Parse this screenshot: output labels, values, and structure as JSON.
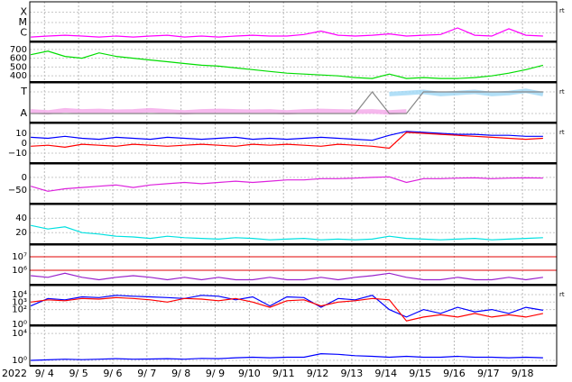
{
  "x_axis": {
    "label": "2022",
    "xlim": [
      3.57,
      19.0
    ],
    "xticks": [
      {
        "value": 4,
        "label": "9/ 4"
      },
      {
        "value": 5,
        "label": "9/ 5"
      },
      {
        "value": 6,
        "label": "9/ 6"
      },
      {
        "value": 7,
        "label": "9/ 7"
      },
      {
        "value": 8,
        "label": "9/ 8"
      },
      {
        "value": 9,
        "label": "9/ 9"
      },
      {
        "value": 10,
        "label": "9/10"
      },
      {
        "value": 11,
        "label": "9/11"
      },
      {
        "value": 12,
        "label": "9/12"
      },
      {
        "value": 13,
        "label": "9/13"
      },
      {
        "value": 14,
        "label": "9/14"
      },
      {
        "value": 15,
        "label": "9/15"
      },
      {
        "value": 16,
        "label": "9/16"
      },
      {
        "value": 17,
        "label": "9/17"
      },
      {
        "value": 18,
        "label": "9/18"
      }
    ]
  },
  "chart_data": [
    {
      "type": "line",
      "log": true,
      "corner_label": "rt",
      "ylim": [
        1.5e-07,
        0.001
      ],
      "yticks": [
        {
          "value": 0.0001,
          "label": "X"
        },
        {
          "value": 1e-05,
          "label": "M"
        },
        {
          "value": 1e-06,
          "label": "C"
        }
      ],
      "x": [
        3.6,
        4.1,
        4.6,
        5.1,
        5.6,
        6.1,
        6.6,
        7.1,
        7.6,
        8.1,
        8.6,
        9.1,
        9.6,
        10.1,
        10.6,
        11.1,
        11.6,
        12.1,
        12.6,
        13.1,
        13.6,
        14.1,
        14.6,
        15.1,
        15.6,
        16.1,
        16.6,
        17.1,
        17.6,
        18.1,
        18.6
      ],
      "series": [
        {
          "color": "#ff00ff",
          "values": [
            4e-07,
            5e-07,
            6e-07,
            5e-07,
            4e-07,
            5e-07,
            4e-07,
            5e-07,
            6e-07,
            4e-07,
            5e-07,
            4e-07,
            5e-07,
            6e-07,
            5e-07,
            5e-07,
            7e-07,
            1.5e-06,
            6e-07,
            5e-07,
            6e-07,
            8e-07,
            5e-07,
            6e-07,
            7e-07,
            3e-06,
            6e-07,
            5e-07,
            2.5e-06,
            6e-07,
            5e-07
          ]
        }
      ]
    },
    {
      "type": "line",
      "log": false,
      "ylim": [
        330,
        780
      ],
      "yticks": [
        400,
        500,
        600,
        700
      ],
      "x": [
        3.6,
        4.1,
        4.6,
        5.1,
        5.6,
        6.1,
        6.6,
        7.1,
        7.6,
        8.1,
        8.6,
        9.1,
        9.6,
        10.1,
        10.6,
        11.1,
        11.6,
        12.1,
        12.6,
        13.1,
        13.6,
        14.1,
        14.6,
        15.1,
        15.6,
        16.1,
        16.6,
        17.1,
        17.6,
        18.1,
        18.6
      ],
      "series": [
        {
          "color": "#00dd00",
          "values": [
            640,
            680,
            620,
            600,
            660,
            620,
            600,
            580,
            560,
            540,
            520,
            510,
            490,
            470,
            450,
            430,
            420,
            410,
            400,
            380,
            370,
            420,
            370,
            380,
            370,
            370,
            380,
            400,
            430,
            470,
            520
          ]
        }
      ]
    },
    {
      "type": "line",
      "log": false,
      "corner_label": "rt",
      "ylim": [
        -0.42,
        1.42
      ],
      "yticks": [
        {
          "value": 1,
          "label": "T"
        },
        {
          "value": 0,
          "label": "A"
        }
      ],
      "x": [
        3.6,
        4.1,
        4.6,
        5.1,
        5.6,
        6.1,
        6.6,
        7.1,
        7.6,
        8.1,
        8.6,
        9.1,
        9.6,
        10.1,
        10.6,
        11.1,
        11.6,
        12.1,
        12.6,
        13.1,
        13.6,
        14.1,
        14.6,
        15.1,
        15.6,
        16.1,
        16.6,
        17.1,
        17.6,
        18.1,
        18.6
      ],
      "series": [
        {
          "color": "#f4a6e8",
          "values": [
            0.1,
            0.05,
            0.15,
            0.1,
            0.12,
            0.08,
            0.1,
            0.15,
            0.1,
            0.05,
            0.1,
            0.12,
            0.1,
            0.08,
            0.1,
            0.05,
            0.1,
            0.12,
            0.1,
            0.08,
            0.1,
            0.05,
            0.1,
            null,
            null,
            null,
            null,
            null,
            null,
            null,
            null
          ]
        },
        {
          "color": "#9dd7f5",
          "values": [
            null,
            null,
            null,
            null,
            null,
            null,
            null,
            null,
            null,
            null,
            null,
            null,
            null,
            null,
            null,
            null,
            null,
            null,
            null,
            null,
            null,
            0.9,
            0.95,
            1.0,
            0.9,
            0.95,
            1.0,
            0.9,
            0.95,
            1.05,
            0.9
          ]
        },
        {
          "color": "#888888",
          "values": [
            0,
            0,
            0,
            0,
            0,
            0,
            0,
            0,
            0,
            0,
            0,
            0,
            0,
            0,
            0,
            0,
            0,
            0,
            0,
            0,
            1,
            0,
            0,
            1,
            1,
            1,
            1,
            1,
            1,
            1,
            1
          ]
        }
      ]
    },
    {
      "type": "line",
      "log": false,
      "corner_label": "rt",
      "ylim": [
        -20,
        20
      ],
      "yticks": [
        10,
        0,
        {
          "value": -10,
          "label": "−10"
        }
      ],
      "x": [
        3.6,
        4.1,
        4.6,
        5.1,
        5.6,
        6.1,
        6.6,
        7.1,
        7.6,
        8.1,
        8.6,
        9.1,
        9.6,
        10.1,
        10.6,
        11.1,
        11.6,
        12.1,
        12.6,
        13.1,
        13.6,
        14.1,
        14.6,
        15.1,
        15.6,
        16.1,
        16.6,
        17.1,
        17.6,
        18.1,
        18.6
      ],
      "series": [
        {
          "color": "#0000ff",
          "values": [
            6,
            5,
            7,
            5,
            4,
            6,
            5,
            4,
            6,
            5,
            4,
            5,
            6,
            4,
            5,
            4,
            5,
            6,
            5,
            4,
            3,
            8,
            12,
            11,
            10,
            9,
            9,
            8,
            8,
            7,
            7
          ]
        },
        {
          "color": "#ff0000",
          "values": [
            -3,
            -2,
            -4,
            -1,
            -2,
            -3,
            -1,
            -2,
            -3,
            -2,
            -1,
            -2,
            -3,
            -1,
            -2,
            -1,
            -2,
            -3,
            -1,
            -2,
            -3,
            -5,
            11,
            10,
            9,
            8,
            7,
            6,
            5,
            4,
            5
          ]
        }
      ]
    },
    {
      "type": "line",
      "log": false,
      "ylim": [
        -104,
        53
      ],
      "yticks": [
        0,
        {
          "value": -50,
          "label": "−50"
        }
      ],
      "x": [
        3.6,
        4.1,
        4.6,
        5.1,
        5.6,
        6.1,
        6.6,
        7.1,
        7.6,
        8.1,
        8.6,
        9.1,
        9.6,
        10.1,
        10.6,
        11.1,
        11.6,
        12.1,
        12.6,
        13.1,
        13.6,
        14.1,
        14.6,
        15.1,
        15.6,
        16.1,
        16.6,
        17.1,
        17.6,
        18.1,
        18.6
      ],
      "series": [
        {
          "color": "#dd22dd",
          "values": [
            -35,
            -55,
            -45,
            -40,
            -35,
            -30,
            -40,
            -30,
            -25,
            -20,
            -25,
            -20,
            -15,
            -20,
            -15,
            -10,
            -10,
            -5,
            -5,
            -3,
            0,
            2,
            -20,
            -5,
            -5,
            -3,
            -2,
            -5,
            -3,
            -2,
            -3
          ]
        }
      ]
    },
    {
      "type": "line",
      "log": false,
      "ylim": [
        4,
        59
      ],
      "yticks": [
        40,
        20
      ],
      "x": [
        3.6,
        4.1,
        4.6,
        5.1,
        5.6,
        6.1,
        6.6,
        7.1,
        7.6,
        8.1,
        8.6,
        9.1,
        9.6,
        10.1,
        10.6,
        11.1,
        11.6,
        12.1,
        12.6,
        13.1,
        13.6,
        14.1,
        14.6,
        15.1,
        15.6,
        16.1,
        16.6,
        17.1,
        17.6,
        18.1,
        18.6
      ],
      "series": [
        {
          "color": "#00e0e0",
          "values": [
            30,
            25,
            28,
            20,
            18,
            15,
            14,
            12,
            15,
            13,
            12,
            11,
            13,
            12,
            10,
            11,
            12,
            10,
            11,
            10,
            11,
            15,
            12,
            11,
            10,
            11,
            12,
            10,
            11,
            12,
            13
          ]
        }
      ]
    },
    {
      "type": "line",
      "log": true,
      "grid_color": "#e00000",
      "ylim": [
        86000,
        73000000
      ],
      "yticks": [
        {
          "value": 10000000,
          "label": "10⁷"
        },
        {
          "value": 1000000,
          "label": "10⁶"
        }
      ],
      "x": [
        3.6,
        4.1,
        4.6,
        5.1,
        5.6,
        6.1,
        6.6,
        7.1,
        7.6,
        8.1,
        8.6,
        9.1,
        9.6,
        10.1,
        10.6,
        11.1,
        11.6,
        12.1,
        12.6,
        13.1,
        13.6,
        14.1,
        14.6,
        15.1,
        15.6,
        16.1,
        16.6,
        17.1,
        17.6,
        18.1,
        18.6
      ],
      "series": [
        {
          "color": "#9922cc",
          "values": [
            400000,
            300000,
            600000,
            300000,
            200000,
            300000,
            400000,
            300000,
            200000,
            300000,
            200000,
            300000,
            200000,
            200000,
            300000,
            200000,
            200000,
            300000,
            200000,
            300000,
            400000,
            600000,
            300000,
            200000,
            200000,
            300000,
            200000,
            200000,
            300000,
            200000,
            300000
          ]
        }
      ]
    },
    {
      "type": "line",
      "log": true,
      "corner_label": "rt",
      "ylim": [
        0.8,
        160000
      ],
      "yticks": [
        {
          "value": 10000,
          "label": "10⁴"
        },
        {
          "value": 1000,
          "label": "10³"
        },
        {
          "value": 100,
          "label": "10²"
        },
        {
          "value": 1,
          "label": "10⁰"
        }
      ],
      "x": [
        3.6,
        4.1,
        4.6,
        5.1,
        5.6,
        6.1,
        6.6,
        7.1,
        7.6,
        8.1,
        8.6,
        9.1,
        9.6,
        10.1,
        10.6,
        11.1,
        11.6,
        12.1,
        12.6,
        13.1,
        13.6,
        14.1,
        14.6,
        15.1,
        15.6,
        16.1,
        16.6,
        17.1,
        17.6,
        18.1,
        18.6
      ],
      "series": [
        {
          "color": "#0000ff",
          "values": [
            300,
            3000,
            2000,
            5000,
            4000,
            8000,
            6000,
            5000,
            4000,
            3000,
            8000,
            6000,
            2000,
            5000,
            300,
            5000,
            4000,
            200,
            3000,
            2000,
            8000,
            100,
            10,
            100,
            30,
            200,
            50,
            100,
            30,
            200,
            80
          ]
        },
        {
          "color": "#ff0000",
          "values": [
            1000,
            2000,
            1500,
            3000,
            2500,
            4000,
            3000,
            2000,
            1000,
            3000,
            2500,
            1500,
            3000,
            1000,
            200,
            1500,
            2000,
            300,
            1000,
            1500,
            3000,
            2000,
            3,
            10,
            20,
            10,
            30,
            10,
            20,
            10,
            30
          ]
        }
      ]
    },
    {
      "type": "line",
      "log": true,
      "ylim": [
        0.16,
        120000
      ],
      "yticks": [
        {
          "value": 10000,
          "label": "10⁴"
        },
        {
          "value": 1,
          "label": "10⁰"
        }
      ],
      "x": [
        3.6,
        4.1,
        4.6,
        5.1,
        5.6,
        6.1,
        6.6,
        7.1,
        7.6,
        8.1,
        8.6,
        9.1,
        9.6,
        10.1,
        10.6,
        11.1,
        11.6,
        12.1,
        12.6,
        13.1,
        13.6,
        14.1,
        14.6,
        15.1,
        15.6,
        16.1,
        16.6,
        17.1,
        17.6,
        18.1,
        18.6
      ],
      "series": [
        {
          "color": "#0000ff",
          "values": [
            1,
            1.2,
            1.5,
            1.3,
            1.5,
            1.8,
            1.5,
            1.6,
            1.8,
            1.5,
            2,
            1.8,
            2.5,
            3,
            2.5,
            3,
            3,
            10,
            8,
            5,
            4,
            3,
            4,
            3,
            3,
            4,
            3,
            3,
            2.5,
            3,
            2.5
          ]
        }
      ]
    }
  ]
}
